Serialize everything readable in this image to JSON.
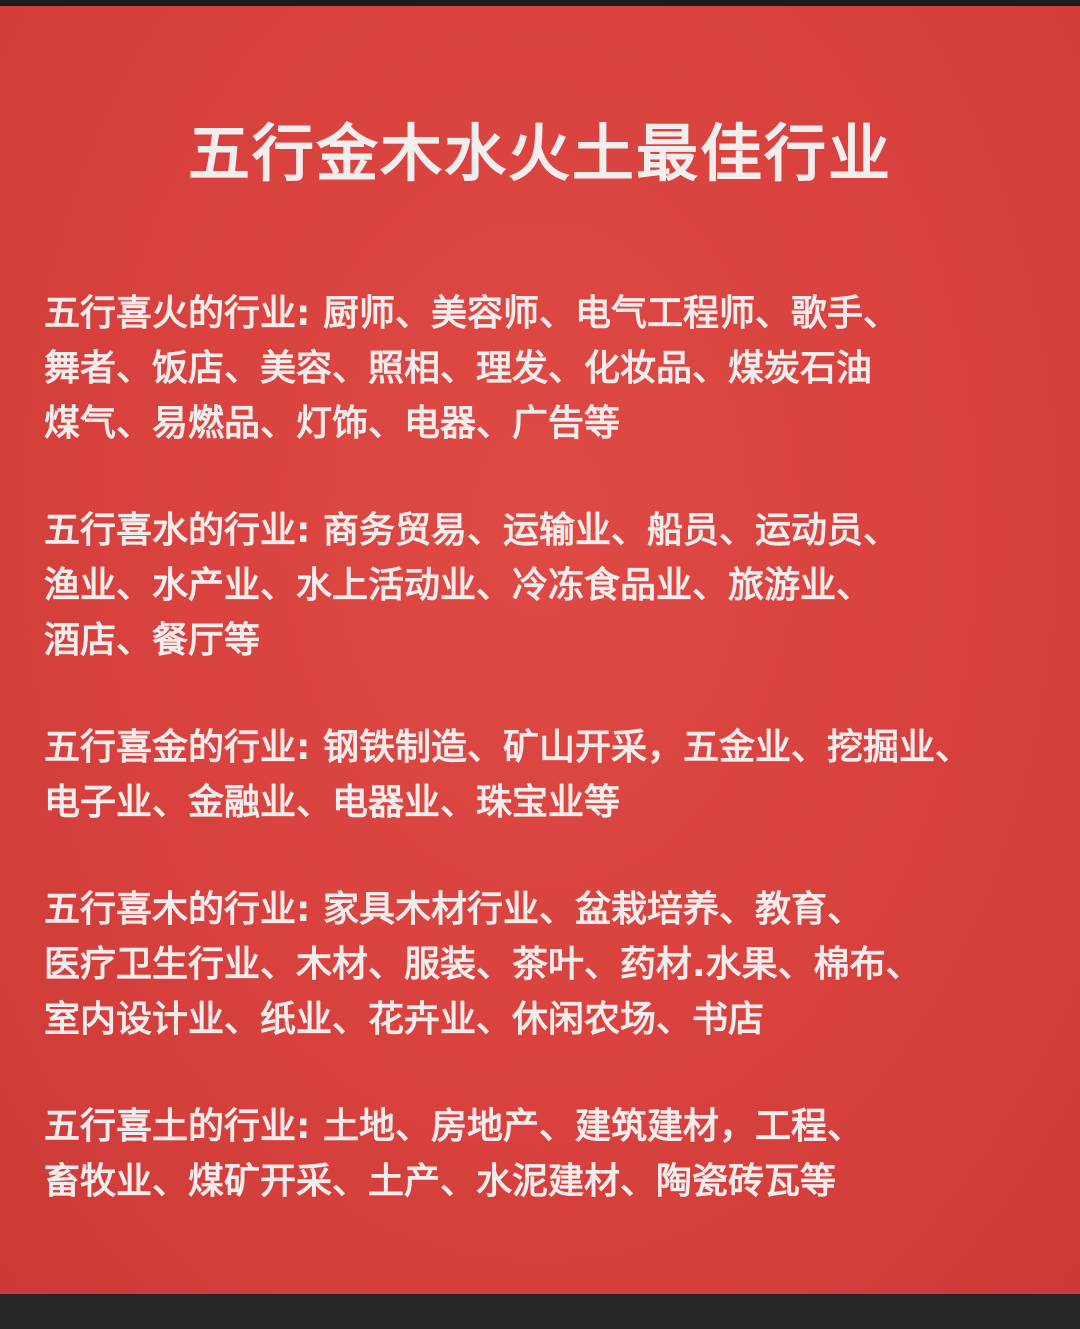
{
  "title": "五行金木水火土最佳行业",
  "sections": [
    {
      "label": "五行喜火的行业:",
      "lines": [
        " 厨师、美容师、电气工程师、歌手、",
        "舞者、饭店、美容、照相、理发、化妆品、煤炭石油",
        "煤气、易燃品、灯饰、电器、广告等"
      ]
    },
    {
      "label": "五行喜水的行业:",
      "lines": [
        " 商务贸易、运输业、船员、运动员、",
        "渔业、水产业、水上活动业、冷冻食品业、旅游业、",
        "酒店、餐厅等"
      ]
    },
    {
      "label": "五行喜金的行业:",
      "lines": [
        " 钢铁制造、矿山开采，五金业、挖掘业、",
        "电子业、金融业、电器业、珠宝业等"
      ]
    },
    {
      "label": "五行喜木的行业:",
      "lines": [
        " 家具木材行业、盆栽培养、教育、",
        "医疗卫生行业、木材、服装、茶叶、药材.水果、棉布、",
        "室内设计业、纸业、花卉业、休闲农场、书店"
      ]
    },
    {
      "label": "五行喜土的行业:",
      "lines": [
        " 土地、房地产、建筑建材，工程、",
        "畜牧业、煤矿开采、土产、水泥建材、陶瓷砖瓦等"
      ]
    }
  ]
}
